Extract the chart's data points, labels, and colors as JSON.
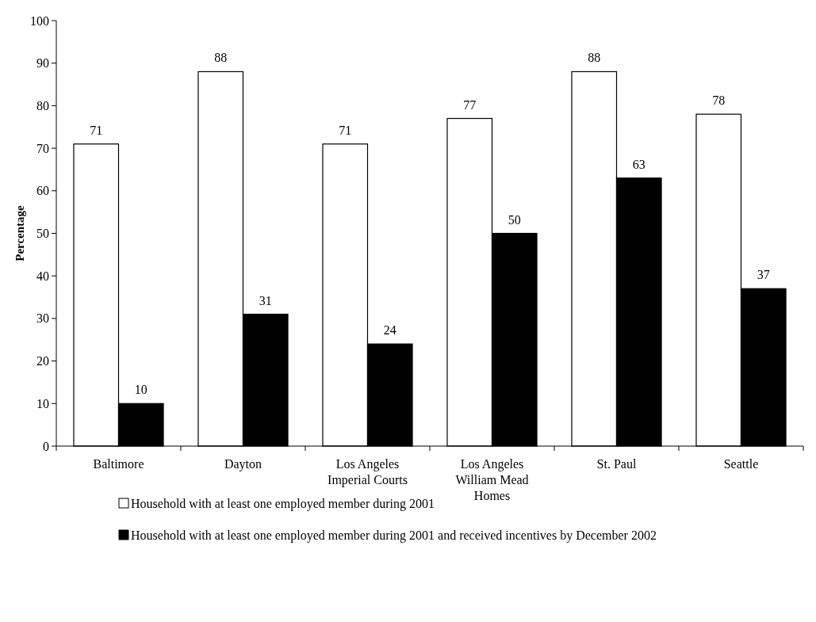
{
  "chart_data": {
    "type": "bar",
    "ylabel": "Percentage",
    "categories": [
      "Baltimore",
      "Dayton",
      "Los Angeles Imperial Courts",
      "Los Angeles William Mead Homes",
      "St. Paul",
      "Seattle"
    ],
    "series": [
      {
        "name": "Household with at least one employed member during 2001",
        "color": "#ffffff",
        "values": [
          71,
          88,
          71,
          77,
          88,
          78
        ]
      },
      {
        "name": "Household with at least one employed member during 2001 and received incentives by December 2002",
        "color": "#000000",
        "values": [
          10,
          31,
          24,
          50,
          63,
          37
        ]
      }
    ],
    "ylim": [
      0,
      100
    ],
    "yticks": [
      0,
      10,
      20,
      30,
      40,
      50,
      60,
      70,
      80,
      90,
      100
    ],
    "data_labels": true,
    "grid": false,
    "legend": "bottom"
  }
}
